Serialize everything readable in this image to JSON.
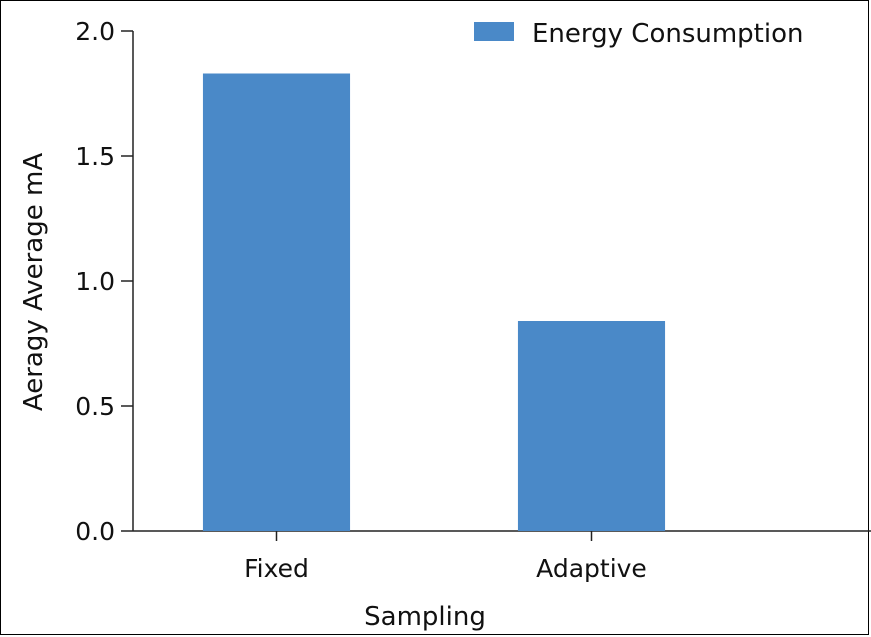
{
  "chart_data": {
    "type": "bar",
    "categories": [
      "Fixed",
      "Adaptive"
    ],
    "series": [
      {
        "name": "Energy Consumption",
        "values": [
          1.83,
          0.84
        ]
      }
    ],
    "xlabel": "Sampling",
    "ylabel": "Aeragy Average  mA",
    "ylim": [
      0,
      2.0
    ],
    "yticks": [
      "0.0",
      "0.5",
      "1.0",
      "1.5",
      "2.0"
    ],
    "grid": false,
    "legend_position": "top-right",
    "colors": {
      "bar": "#4a89c8",
      "axis": "#222222"
    }
  }
}
